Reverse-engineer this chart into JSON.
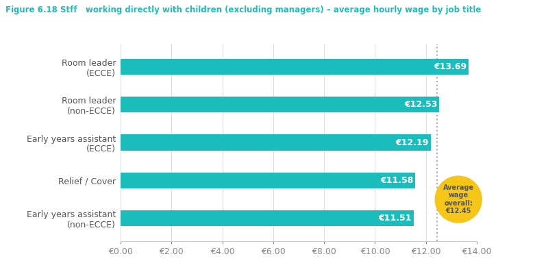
{
  "title": "Figure 6.18 Stff   working directly with children (excluding managers) – average hourly wage by job title",
  "categories": [
    "Early years assistant\n(non-ECCE)",
    "Relief / Cover",
    "Early years assistant\n(ECCE)",
    "Room leader\n(non-ECCE)",
    "Room leader\n(ECCE)"
  ],
  "values": [
    11.51,
    11.58,
    12.19,
    12.53,
    13.69
  ],
  "bar_color": "#1ABCBC",
  "label_color": "#FFFFFF",
  "title_color": "#1ABCBC",
  "axis_tick_color": "#888888",
  "xlim": [
    0,
    14
  ],
  "xticks": [
    0,
    2,
    4,
    6,
    8,
    10,
    12,
    14
  ],
  "xtick_labels": [
    "€0.00",
    "€2.00",
    "€4.00",
    "€6.00",
    "€8.00",
    "€10.00",
    "€12.00",
    "€14.00"
  ],
  "average_wage": 12.45,
  "average_wage_label": "Average\nwage\noverall:\n€12.45",
  "average_wage_color": "#F5C518",
  "average_wage_text_color": "#555555",
  "bar_height": 0.42,
  "value_labels": [
    "€11.51",
    "€11.58",
    "€12.19",
    "€12.53",
    "€13.69"
  ],
  "background_color": "#FFFFFF"
}
